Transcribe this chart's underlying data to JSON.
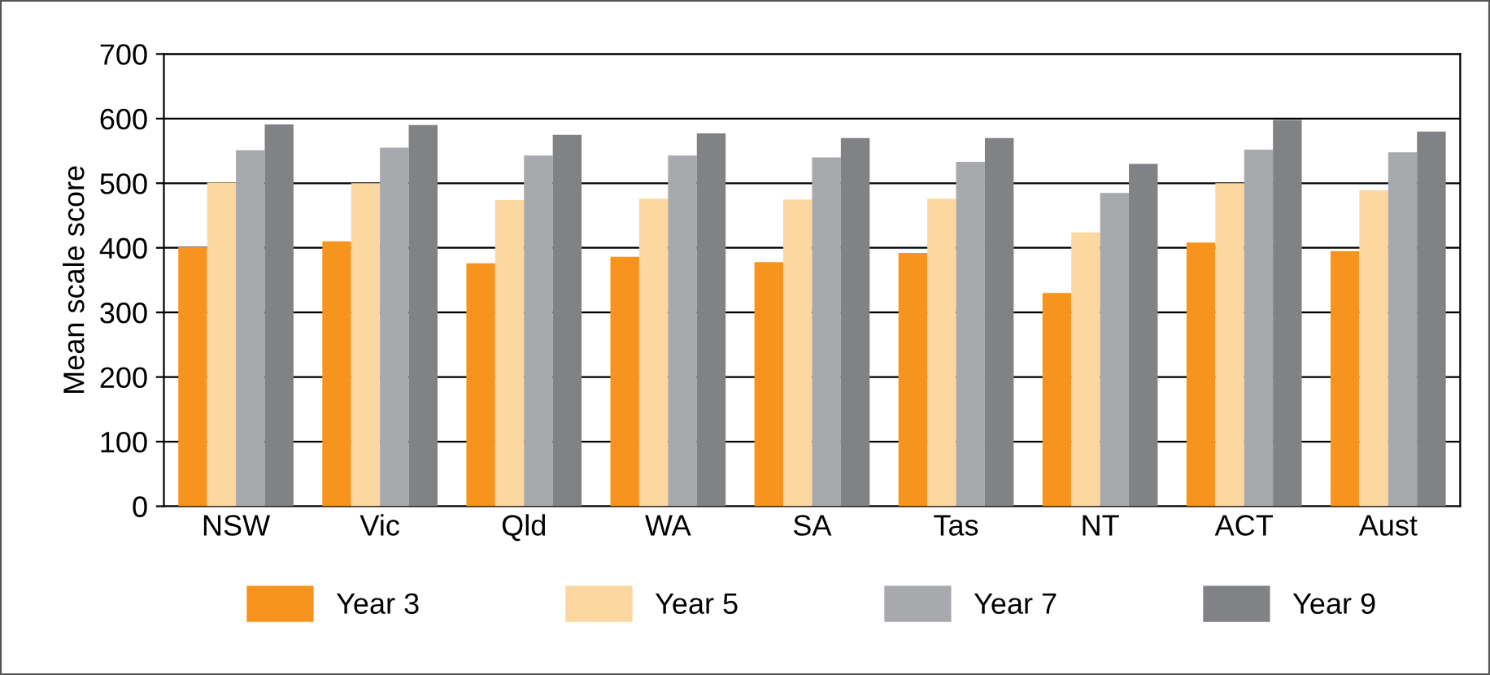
{
  "chart_data": {
    "type": "bar",
    "ylabel": "Mean scale score",
    "categories": [
      "NSW",
      "Vic",
      "Qld",
      "WA",
      "SA",
      "Tas",
      "NT",
      "ACT",
      "Aust"
    ],
    "series": [
      {
        "name": "Year 3",
        "color": "#f7941d",
        "values": [
          401,
          410,
          376,
          386,
          378,
          392,
          330,
          408,
          395
        ]
      },
      {
        "name": "Year 5",
        "color": "#fdd7a0",
        "values": [
          501,
          500,
          474,
          476,
          475,
          476,
          424,
          500,
          489
        ]
      },
      {
        "name": "Year 7",
        "color": "#a7a9ac",
        "values": [
          551,
          555,
          543,
          543,
          540,
          533,
          485,
          552,
          548
        ]
      },
      {
        "name": "Year 9",
        "color": "#808285",
        "values": [
          591,
          590,
          575,
          577,
          570,
          570,
          530,
          598,
          580
        ]
      }
    ],
    "ylim": [
      0,
      700
    ],
    "yticks": [
      0,
      100,
      200,
      300,
      400,
      500,
      600,
      700
    ],
    "grid": "y",
    "legend": "bottom"
  }
}
